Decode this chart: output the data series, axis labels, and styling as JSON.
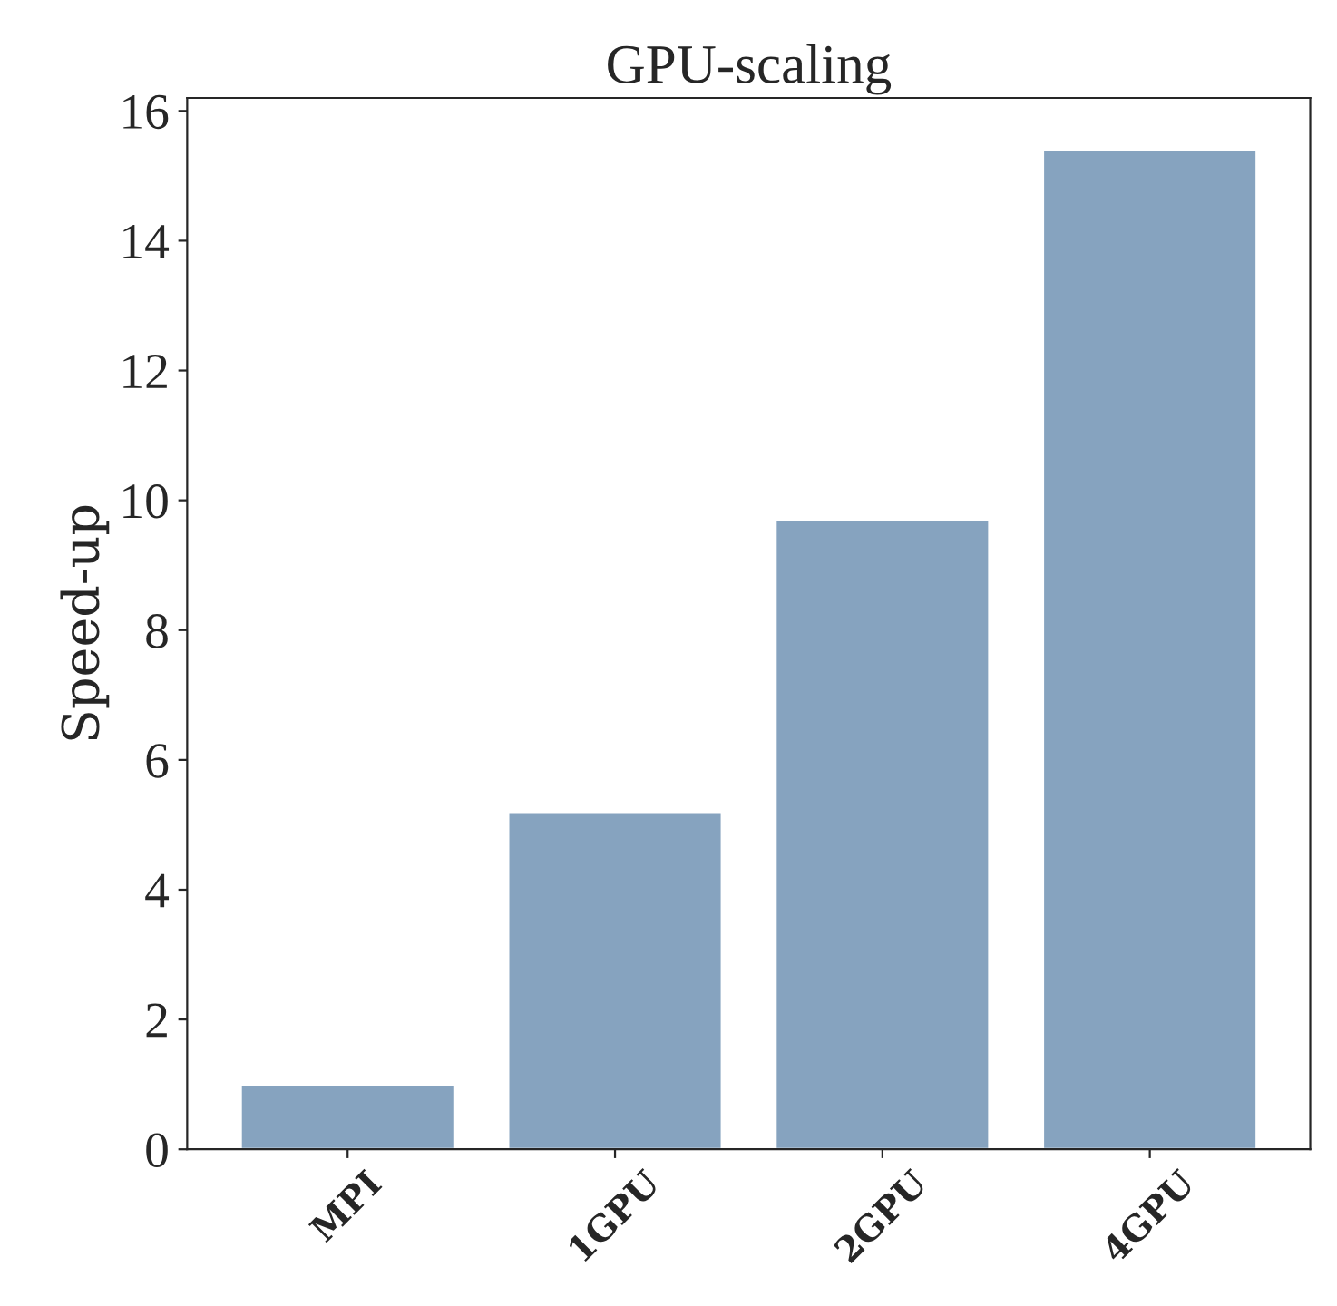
{
  "chart_data": {
    "type": "bar",
    "title": "GPU-scaling",
    "ylabel": "Speed-up",
    "categories": [
      "MPI",
      "1GPU",
      "2GPU",
      "4GPU"
    ],
    "values": [
      1.0,
      5.2,
      9.7,
      15.4
    ],
    "color": "#86a3bf",
    "ylim": [
      0,
      16.2
    ],
    "yticks": [
      0,
      2,
      4,
      6,
      8,
      10,
      12,
      14,
      16
    ],
    "grid": false
  }
}
